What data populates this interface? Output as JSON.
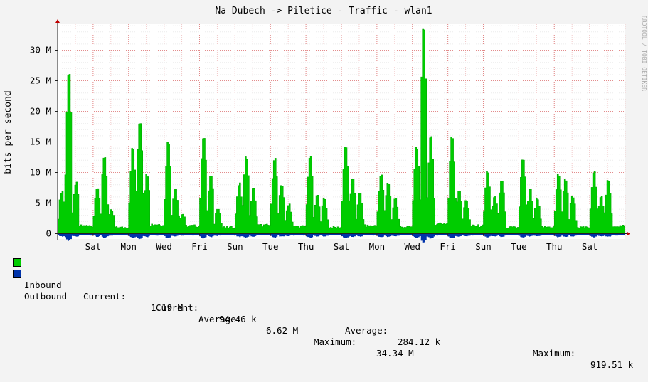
{
  "chart_data": {
    "type": "area",
    "title": "Na Dubech -> Piletice - Traffic - wlan1",
    "ylabel": "bits per second",
    "watermark": "RRDTOOL / TOBI OETIKER",
    "ylim": [
      -1,
      35
    ],
    "yticks": [
      {
        "value": 0,
        "label": "0"
      },
      {
        "value": 5,
        "label": "5 M"
      },
      {
        "value": 10,
        "label": "10 M"
      },
      {
        "value": 15,
        "label": "15 M"
      },
      {
        "value": 20,
        "label": "20 M"
      },
      {
        "value": 25,
        "label": "25 M"
      },
      {
        "value": 30,
        "label": "30 M"
      }
    ],
    "xlim": [
      0,
      16
    ],
    "xticks": [
      {
        "value": 1,
        "label": "Sat"
      },
      {
        "value": 2,
        "label": "Mon"
      },
      {
        "value": 3,
        "label": "Wed"
      },
      {
        "value": 4,
        "label": "Fri"
      },
      {
        "value": 5,
        "label": "Sun"
      },
      {
        "value": 6,
        "label": "Tue"
      },
      {
        "value": 7,
        "label": "Thu"
      },
      {
        "value": 8,
        "label": "Sat"
      },
      {
        "value": 9,
        "label": "Mon"
      },
      {
        "value": 10,
        "label": "Wed"
      },
      {
        "value": 11,
        "label": "Fri"
      },
      {
        "value": 12,
        "label": "Sun"
      },
      {
        "value": 13,
        "label": "Tue"
      },
      {
        "value": 14,
        "label": "Thu"
      },
      {
        "value": 15,
        "label": "Sat"
      }
    ],
    "peaks": [
      [
        6.8,
        26.7,
        8.1,
        1.5
      ],
      [
        7.5,
        12.6,
        3.5,
        1.2
      ],
      [
        13.9,
        18.4,
        9.6,
        1.8
      ],
      [
        15.0,
        7.4,
        3.0,
        1.5
      ],
      [
        16.0,
        9.3,
        4.1,
        1.2
      ],
      [
        8.0,
        12.5,
        7.2,
        1.6
      ],
      [
        12.3,
        7.8,
        4.7,
        1.4
      ],
      [
        12.5,
        6.0,
        5.5,
        1.2
      ],
      [
        14.3,
        8.6,
        6.3,
        1.5
      ],
      [
        9.4,
        8.1,
        5.6,
        1.3
      ],
      [
        14.2,
        34.3,
        15.8,
        2.0
      ],
      [
        15.8,
        7.0,
        5.4,
        1.5
      ],
      [
        10.0,
        5.9,
        8.6,
        1.2
      ],
      [
        12.0,
        7.0,
        5.4,
        1.3
      ],
      [
        9.5,
        8.8,
        6.0,
        1.2
      ],
      [
        10.0,
        6.1,
        8.4,
        1.5
      ],
      [
        10.0,
        6.3,
        8.5,
        1.2
      ],
      [
        12.7,
        8.4,
        6.0,
        1.6
      ],
      [
        10.0,
        6.6,
        8.4,
        1.4
      ],
      [
        9.6,
        7.9,
        5.9,
        1.2
      ],
      [
        10.0,
        11.9,
        6.0,
        1.5
      ],
      [
        9.0,
        8.4,
        5.4,
        1.2
      ],
      [
        13.0,
        7.8,
        7.8,
        1.6
      ],
      [
        10.7,
        6.9,
        9.6,
        1.3
      ],
      [
        9.4,
        11.5,
        6.9,
        1.2
      ],
      [
        8.2,
        6.1,
        8.0,
        1.5
      ],
      [
        13.0,
        6.2,
        9.0,
        1.8
      ],
      [
        9.0,
        7.8,
        6.5,
        1.2
      ]
    ],
    "series": [
      {
        "name": "Inbound",
        "color": "#00cc00",
        "current": "1.19 M",
        "average": "6.62 M",
        "maximum": "34.34 M"
      },
      {
        "name": "Outbound",
        "color": "#0033aa",
        "current": "94.46 k",
        "average": "284.12 k",
        "maximum": "919.51 k"
      }
    ]
  },
  "legend": {
    "current_label": "Current:",
    "average_label": "Average:",
    "maximum_label": "Maximum:"
  }
}
